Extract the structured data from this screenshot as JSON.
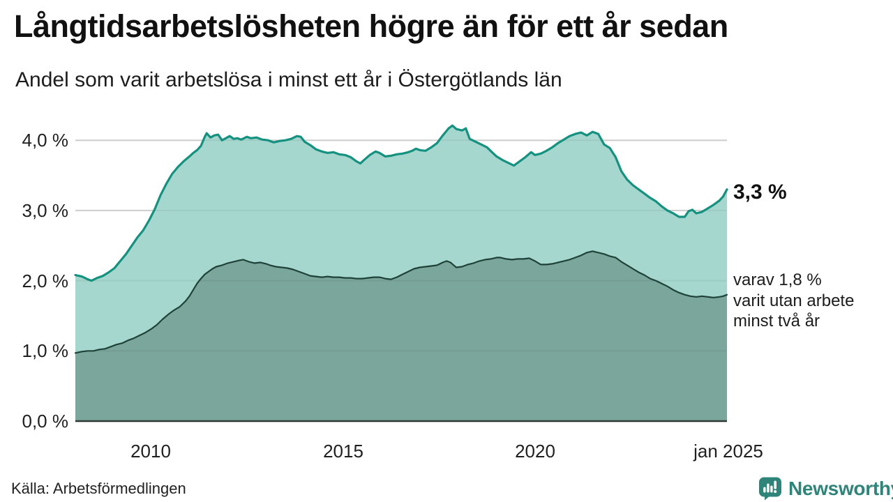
{
  "chart_data": {
    "type": "area",
    "title": "Långtidsarbetslösheten högre än för ett år sedan",
    "subtitle": "Andel som varit arbetslösa i minst ett år i Östergötlands län",
    "unit": "%",
    "x_domain": [
      2008.03,
      2025.0
    ],
    "ylim": [
      0,
      4.2
    ],
    "grid": true,
    "grid_color": "#d9d9d9",
    "axis_color": "#2f3a37",
    "legend_position": "right-annotations",
    "y_ticks": [
      {
        "label": "4,0 %",
        "value": 4.0
      },
      {
        "label": "3,0 %",
        "value": 3.0
      },
      {
        "label": "2,0 %",
        "value": 2.0
      },
      {
        "label": "1,0 %",
        "value": 1.0
      },
      {
        "label": "0,0 %",
        "value": 0.0
      }
    ],
    "x_ticks": [
      {
        "label": "2010",
        "year": 2010
      },
      {
        "label": "2015",
        "year": 2015
      },
      {
        "label": "2020",
        "year": 2020
      },
      {
        "label": "jan 2025",
        "year": 2025.0
      }
    ],
    "series": [
      {
        "name": "Andel som varit arbetslösa minst ett år",
        "line_color": "#14917f",
        "fill_color": "#a6d7cf",
        "line_width": 3.2,
        "end_value_label": "3,3 %",
        "end_value": 3.3,
        "points": [
          [
            2008.03,
            2.08
          ],
          [
            2008.2,
            2.06
          ],
          [
            2008.35,
            2.02
          ],
          [
            2008.45,
            2.0
          ],
          [
            2008.6,
            2.04
          ],
          [
            2008.75,
            2.07
          ],
          [
            2008.9,
            2.12
          ],
          [
            2009.05,
            2.18
          ],
          [
            2009.2,
            2.28
          ],
          [
            2009.35,
            2.38
          ],
          [
            2009.5,
            2.5
          ],
          [
            2009.65,
            2.62
          ],
          [
            2009.8,
            2.72
          ],
          [
            2009.95,
            2.86
          ],
          [
            2010.1,
            3.02
          ],
          [
            2010.25,
            3.22
          ],
          [
            2010.4,
            3.38
          ],
          [
            2010.55,
            3.52
          ],
          [
            2010.7,
            3.62
          ],
          [
            2010.85,
            3.7
          ],
          [
            2011.0,
            3.77
          ],
          [
            2011.1,
            3.82
          ],
          [
            2011.2,
            3.86
          ],
          [
            2011.3,
            3.92
          ],
          [
            2011.4,
            4.05
          ],
          [
            2011.45,
            4.1
          ],
          [
            2011.55,
            4.04
          ],
          [
            2011.65,
            4.07
          ],
          [
            2011.75,
            4.08
          ],
          [
            2011.85,
            4.0
          ],
          [
            2011.95,
            4.03
          ],
          [
            2012.05,
            4.06
          ],
          [
            2012.15,
            4.02
          ],
          [
            2012.25,
            4.03
          ],
          [
            2012.35,
            4.01
          ],
          [
            2012.5,
            4.05
          ],
          [
            2012.6,
            4.03
          ],
          [
            2012.75,
            4.04
          ],
          [
            2012.9,
            4.01
          ],
          [
            2013.05,
            4.0
          ],
          [
            2013.2,
            3.97
          ],
          [
            2013.35,
            3.99
          ],
          [
            2013.5,
            4.0
          ],
          [
            2013.65,
            4.02
          ],
          [
            2013.8,
            4.06
          ],
          [
            2013.9,
            4.05
          ],
          [
            2014.0,
            3.98
          ],
          [
            2014.15,
            3.93
          ],
          [
            2014.3,
            3.87
          ],
          [
            2014.45,
            3.84
          ],
          [
            2014.6,
            3.82
          ],
          [
            2014.75,
            3.83
          ],
          [
            2014.9,
            3.8
          ],
          [
            2015.05,
            3.79
          ],
          [
            2015.2,
            3.76
          ],
          [
            2015.35,
            3.7
          ],
          [
            2015.45,
            3.67
          ],
          [
            2015.55,
            3.72
          ],
          [
            2015.7,
            3.79
          ],
          [
            2015.85,
            3.84
          ],
          [
            2015.95,
            3.82
          ],
          [
            2016.1,
            3.77
          ],
          [
            2016.25,
            3.78
          ],
          [
            2016.4,
            3.8
          ],
          [
            2016.55,
            3.81
          ],
          [
            2016.7,
            3.83
          ],
          [
            2016.8,
            3.85
          ],
          [
            2016.9,
            3.88
          ],
          [
            2017.0,
            3.86
          ],
          [
            2017.15,
            3.85
          ],
          [
            2017.3,
            3.9
          ],
          [
            2017.45,
            3.96
          ],
          [
            2017.6,
            4.07
          ],
          [
            2017.75,
            4.17
          ],
          [
            2017.85,
            4.21
          ],
          [
            2017.95,
            4.16
          ],
          [
            2018.1,
            4.14
          ],
          [
            2018.2,
            4.17
          ],
          [
            2018.3,
            4.02
          ],
          [
            2018.45,
            3.98
          ],
          [
            2018.6,
            3.94
          ],
          [
            2018.75,
            3.9
          ],
          [
            2018.9,
            3.82
          ],
          [
            2019.0,
            3.77
          ],
          [
            2019.15,
            3.72
          ],
          [
            2019.3,
            3.68
          ],
          [
            2019.45,
            3.64
          ],
          [
            2019.6,
            3.7
          ],
          [
            2019.75,
            3.76
          ],
          [
            2019.9,
            3.83
          ],
          [
            2020.0,
            3.79
          ],
          [
            2020.15,
            3.81
          ],
          [
            2020.3,
            3.85
          ],
          [
            2020.45,
            3.9
          ],
          [
            2020.6,
            3.96
          ],
          [
            2020.75,
            4.01
          ],
          [
            2020.9,
            4.06
          ],
          [
            2021.05,
            4.09
          ],
          [
            2021.2,
            4.11
          ],
          [
            2021.35,
            4.07
          ],
          [
            2021.5,
            4.12
          ],
          [
            2021.65,
            4.09
          ],
          [
            2021.8,
            3.94
          ],
          [
            2021.95,
            3.89
          ],
          [
            2022.1,
            3.76
          ],
          [
            2022.25,
            3.56
          ],
          [
            2022.4,
            3.44
          ],
          [
            2022.55,
            3.36
          ],
          [
            2022.7,
            3.3
          ],
          [
            2022.85,
            3.24
          ],
          [
            2023.0,
            3.18
          ],
          [
            2023.15,
            3.13
          ],
          [
            2023.3,
            3.06
          ],
          [
            2023.45,
            3.0
          ],
          [
            2023.6,
            2.96
          ],
          [
            2023.75,
            2.91
          ],
          [
            2023.9,
            2.91
          ],
          [
            2024.0,
            2.99
          ],
          [
            2024.1,
            3.01
          ],
          [
            2024.2,
            2.96
          ],
          [
            2024.35,
            2.98
          ],
          [
            2024.5,
            3.03
          ],
          [
            2024.65,
            3.08
          ],
          [
            2024.8,
            3.14
          ],
          [
            2024.9,
            3.2
          ],
          [
            2025.0,
            3.3
          ]
        ]
      },
      {
        "name": "varav utan arbete minst två år",
        "line_color": "#1f4238",
        "fill_color": "#7ba69b",
        "line_width": 2.2,
        "end_value": 1.8,
        "annotation_lines": [
          "varav 1,8 %",
          "varit utan arbete",
          "minst två år"
        ],
        "points": [
          [
            2008.03,
            0.97
          ],
          [
            2008.2,
            0.99
          ],
          [
            2008.35,
            1.0
          ],
          [
            2008.5,
            1.0
          ],
          [
            2008.65,
            1.02
          ],
          [
            2008.8,
            1.03
          ],
          [
            2008.95,
            1.06
          ],
          [
            2009.1,
            1.09
          ],
          [
            2009.25,
            1.11
          ],
          [
            2009.4,
            1.15
          ],
          [
            2009.55,
            1.18
          ],
          [
            2009.7,
            1.22
          ],
          [
            2009.85,
            1.26
          ],
          [
            2010.0,
            1.31
          ],
          [
            2010.15,
            1.37
          ],
          [
            2010.3,
            1.45
          ],
          [
            2010.45,
            1.52
          ],
          [
            2010.6,
            1.58
          ],
          [
            2010.75,
            1.63
          ],
          [
            2010.9,
            1.71
          ],
          [
            2011.0,
            1.78
          ],
          [
            2011.1,
            1.87
          ],
          [
            2011.2,
            1.96
          ],
          [
            2011.3,
            2.03
          ],
          [
            2011.4,
            2.09
          ],
          [
            2011.5,
            2.13
          ],
          [
            2011.6,
            2.17
          ],
          [
            2011.7,
            2.2
          ],
          [
            2011.85,
            2.22
          ],
          [
            2012.0,
            2.25
          ],
          [
            2012.15,
            2.27
          ],
          [
            2012.3,
            2.29
          ],
          [
            2012.4,
            2.3
          ],
          [
            2012.55,
            2.27
          ],
          [
            2012.7,
            2.25
          ],
          [
            2012.85,
            2.26
          ],
          [
            2013.0,
            2.24
          ],
          [
            2013.1,
            2.22
          ],
          [
            2013.25,
            2.2
          ],
          [
            2013.4,
            2.19
          ],
          [
            2013.55,
            2.18
          ],
          [
            2013.7,
            2.16
          ],
          [
            2013.85,
            2.13
          ],
          [
            2014.0,
            2.1
          ],
          [
            2014.15,
            2.07
          ],
          [
            2014.3,
            2.06
          ],
          [
            2014.45,
            2.05
          ],
          [
            2014.6,
            2.06
          ],
          [
            2014.75,
            2.05
          ],
          [
            2014.9,
            2.05
          ],
          [
            2015.05,
            2.04
          ],
          [
            2015.2,
            2.04
          ],
          [
            2015.35,
            2.03
          ],
          [
            2015.5,
            2.03
          ],
          [
            2015.65,
            2.04
          ],
          [
            2015.8,
            2.05
          ],
          [
            2015.95,
            2.05
          ],
          [
            2016.1,
            2.03
          ],
          [
            2016.25,
            2.02
          ],
          [
            2016.4,
            2.05
          ],
          [
            2016.55,
            2.09
          ],
          [
            2016.7,
            2.13
          ],
          [
            2016.85,
            2.17
          ],
          [
            2017.0,
            2.19
          ],
          [
            2017.15,
            2.2
          ],
          [
            2017.3,
            2.21
          ],
          [
            2017.45,
            2.22
          ],
          [
            2017.6,
            2.26
          ],
          [
            2017.7,
            2.28
          ],
          [
            2017.8,
            2.26
          ],
          [
            2017.95,
            2.19
          ],
          [
            2018.1,
            2.2
          ],
          [
            2018.25,
            2.23
          ],
          [
            2018.4,
            2.25
          ],
          [
            2018.55,
            2.28
          ],
          [
            2018.7,
            2.3
          ],
          [
            2018.85,
            2.31
          ],
          [
            2019.0,
            2.33
          ],
          [
            2019.1,
            2.33
          ],
          [
            2019.25,
            2.31
          ],
          [
            2019.4,
            2.3
          ],
          [
            2019.55,
            2.31
          ],
          [
            2019.7,
            2.31
          ],
          [
            2019.85,
            2.32
          ],
          [
            2020.0,
            2.28
          ],
          [
            2020.15,
            2.23
          ],
          [
            2020.3,
            2.23
          ],
          [
            2020.45,
            2.24
          ],
          [
            2020.6,
            2.26
          ],
          [
            2020.75,
            2.28
          ],
          [
            2020.9,
            2.3
          ],
          [
            2021.05,
            2.33
          ],
          [
            2021.2,
            2.36
          ],
          [
            2021.35,
            2.4
          ],
          [
            2021.5,
            2.42
          ],
          [
            2021.65,
            2.4
          ],
          [
            2021.8,
            2.38
          ],
          [
            2021.95,
            2.35
          ],
          [
            2022.1,
            2.33
          ],
          [
            2022.25,
            2.27
          ],
          [
            2022.4,
            2.22
          ],
          [
            2022.55,
            2.17
          ],
          [
            2022.7,
            2.12
          ],
          [
            2022.85,
            2.08
          ],
          [
            2023.0,
            2.03
          ],
          [
            2023.15,
            2.0
          ],
          [
            2023.3,
            1.96
          ],
          [
            2023.45,
            1.92
          ],
          [
            2023.6,
            1.87
          ],
          [
            2023.75,
            1.83
          ],
          [
            2023.9,
            1.8
          ],
          [
            2024.05,
            1.78
          ],
          [
            2024.2,
            1.77
          ],
          [
            2024.35,
            1.78
          ],
          [
            2024.5,
            1.77
          ],
          [
            2024.65,
            1.76
          ],
          [
            2024.8,
            1.77
          ],
          [
            2024.9,
            1.78
          ],
          [
            2025.0,
            1.8
          ]
        ]
      }
    ]
  },
  "footer": {
    "source": "Källa: Arbetsförmedlingen",
    "brand_name": "Newsworthy",
    "brand_color": "#2e8478"
  }
}
